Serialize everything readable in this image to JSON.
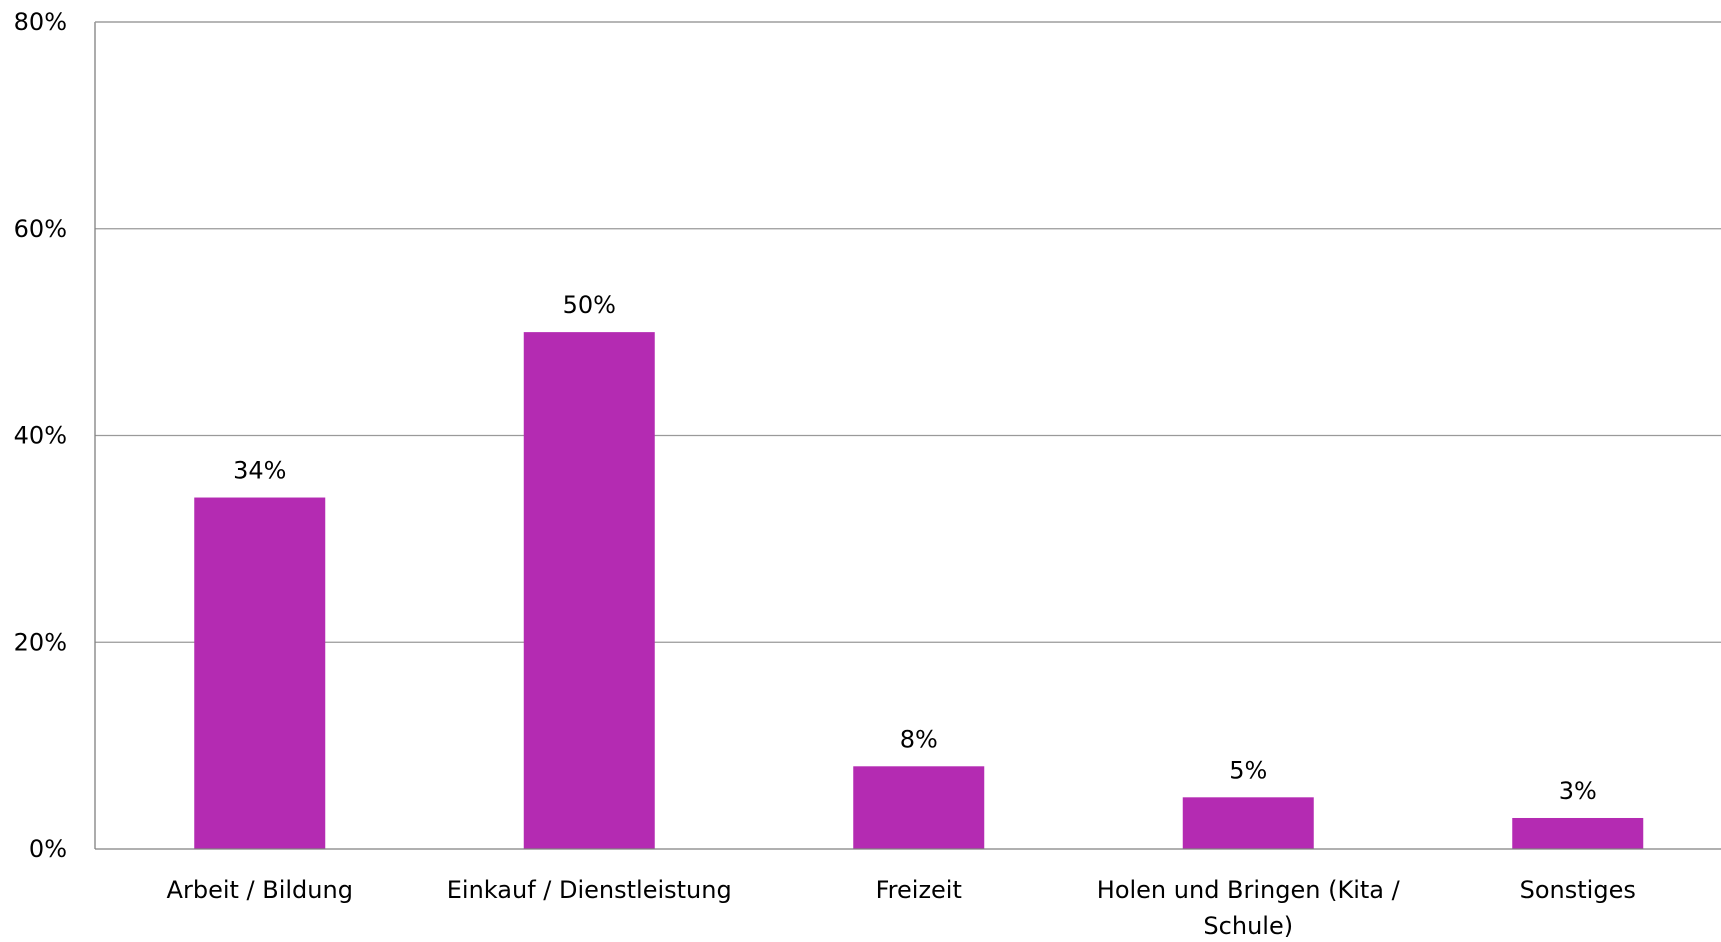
{
  "chart_data": {
    "type": "bar",
    "categories": [
      "Arbeit / Bildung",
      "Einkauf / Dienstleistung",
      "Freizeit",
      "Holen und Bringen (Kita / Schule)",
      "Sonstiges"
    ],
    "category_label_lines": [
      [
        "Arbeit / Bildung"
      ],
      [
        "Einkauf / Dienstleistung"
      ],
      [
        "Freizeit"
      ],
      [
        "Holen und Bringen (Kita /",
        "Schule)"
      ],
      [
        "Sonstiges"
      ]
    ],
    "values": [
      34,
      50,
      8,
      5,
      3
    ],
    "data_labels": [
      "34%",
      "50%",
      "8%",
      "5%",
      "3%"
    ],
    "y_ticks": [
      0,
      20,
      40,
      60,
      80
    ],
    "y_tick_labels": [
      "0%",
      "20%",
      "40%",
      "60%",
      "80%"
    ],
    "ylim": [
      0,
      80
    ],
    "title": "",
    "xlabel": "",
    "ylabel": "",
    "grid": true,
    "legend": "none",
    "colors": {
      "bar": "#b42bb2",
      "grid": "#9a9a9a",
      "axis": "#808080",
      "text": "#000000"
    }
  }
}
